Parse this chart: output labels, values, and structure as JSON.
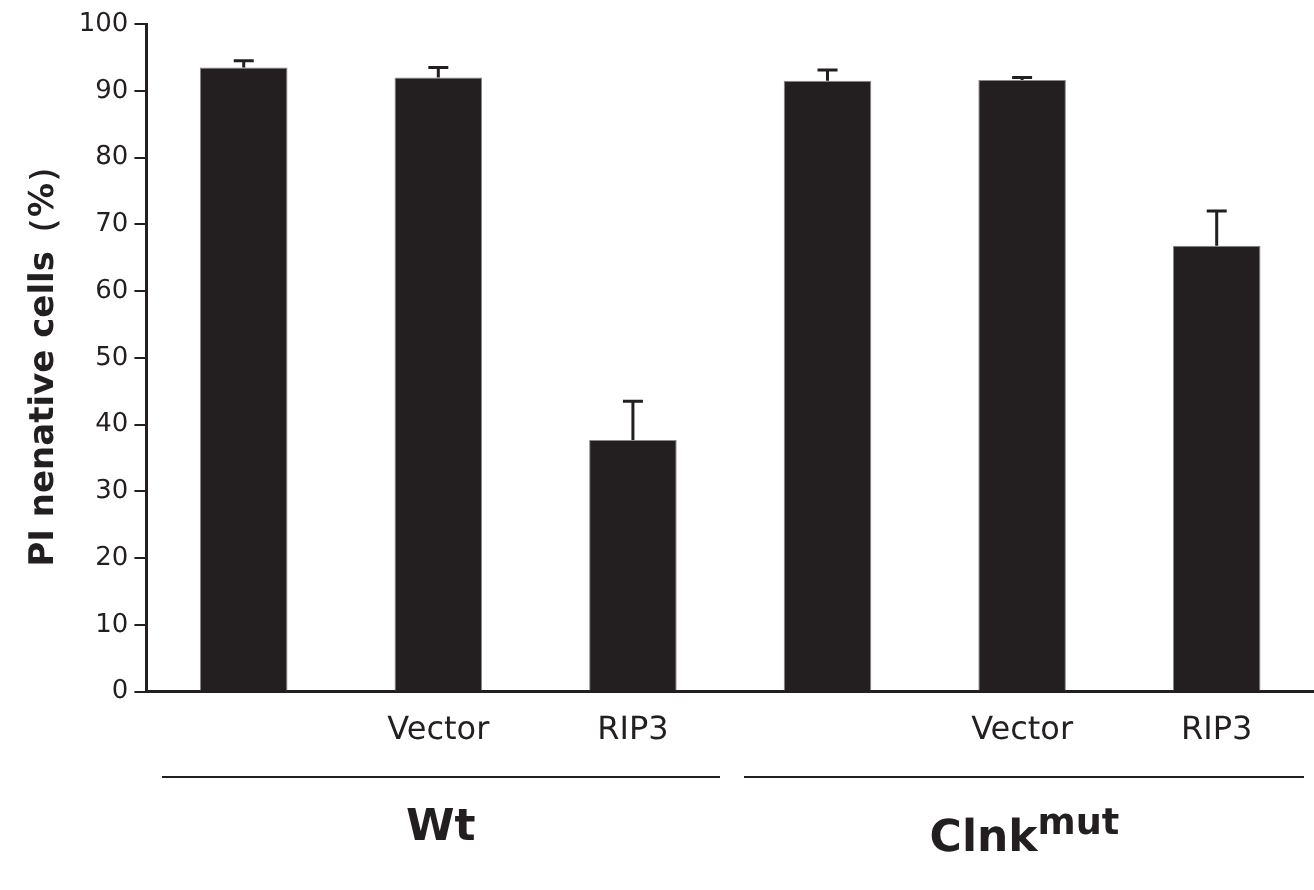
{
  "chart_data": {
    "type": "bar",
    "ylabel": "PI nenative cells（%）",
    "categories": [
      null,
      "Vector",
      "RIP3",
      null,
      "Vector",
      "RIP3"
    ],
    "values": [
      93.5,
      92.0,
      37.7,
      91.5,
      91.6,
      66.8
    ],
    "errors": [
      [
        93.5,
        94.5
      ],
      [
        92.0,
        93.5
      ],
      [
        37.7,
        43.5
      ],
      [
        91.5,
        93.1
      ],
      [
        91.6,
        92.0
      ],
      [
        66.8,
        72.0
      ]
    ],
    "color": "#231f20",
    "ylim": [
      0,
      100
    ],
    "yticks": [
      0,
      10,
      20,
      30,
      40,
      50,
      60,
      70,
      80,
      90,
      100
    ],
    "grid": false,
    "legend": false,
    "annotations": [
      "Wt",
      "Clnk$^{mut}$"
    ]
  }
}
